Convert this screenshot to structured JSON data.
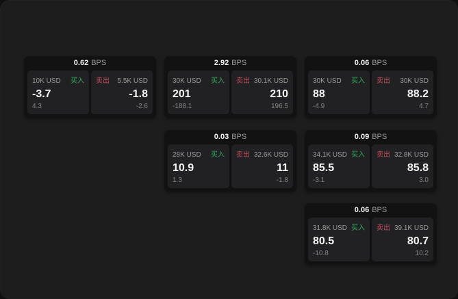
{
  "board": {
    "unit_label": "BPS",
    "buy_label": "买入",
    "sell_label": "卖出",
    "colors": {
      "page_bg": "#101010",
      "panel_bg": "#1d1d1e",
      "card_bg": "#121213",
      "tile_bg": "#212123",
      "buy": "#32a75f",
      "sell": "#c34f5e",
      "label_gray": "#9b9b9b",
      "value_white": "#f5f5f5",
      "delta_gray": "#868686"
    },
    "cards": [
      {
        "row": 1,
        "col": 1,
        "bps": "0.62",
        "buy_size": "10K USD",
        "buy_price": "-3.7",
        "buy_delta": "4.3",
        "sell_size": "5.5K USD",
        "sell_price": "-1.8",
        "sell_delta": "-2.6"
      },
      {
        "row": 1,
        "col": 2,
        "bps": "2.92",
        "buy_size": "30K USD",
        "buy_price": "201",
        "buy_delta": "-188.1",
        "sell_size": "30.1K USD",
        "sell_price": "210",
        "sell_delta": "196.5"
      },
      {
        "row": 1,
        "col": 3,
        "bps": "0.06",
        "buy_size": "30K USD",
        "buy_price": "88",
        "buy_delta": "-4.9",
        "sell_size": "30K USD",
        "sell_price": "88.2",
        "sell_delta": "4.7"
      },
      {
        "row": 2,
        "col": 2,
        "bps": "0.03",
        "buy_size": "28K USD",
        "buy_price": "10.9",
        "buy_delta": "1.3",
        "sell_size": "32.6K USD",
        "sell_price": "11",
        "sell_delta": "-1.8"
      },
      {
        "row": 2,
        "col": 3,
        "bps": "0.09",
        "buy_size": "34.1K USD",
        "buy_price": "85.5",
        "buy_delta": "-3.1",
        "sell_size": "32.8K USD",
        "sell_price": "85.8",
        "sell_delta": "3.0"
      },
      {
        "row": 3,
        "col": 3,
        "bps": "0.06",
        "buy_size": "31.8K USD",
        "buy_price": "80.5",
        "buy_delta": "-10.8",
        "sell_size": "39.1K USD",
        "sell_price": "80.7",
        "sell_delta": "10.2"
      }
    ]
  }
}
